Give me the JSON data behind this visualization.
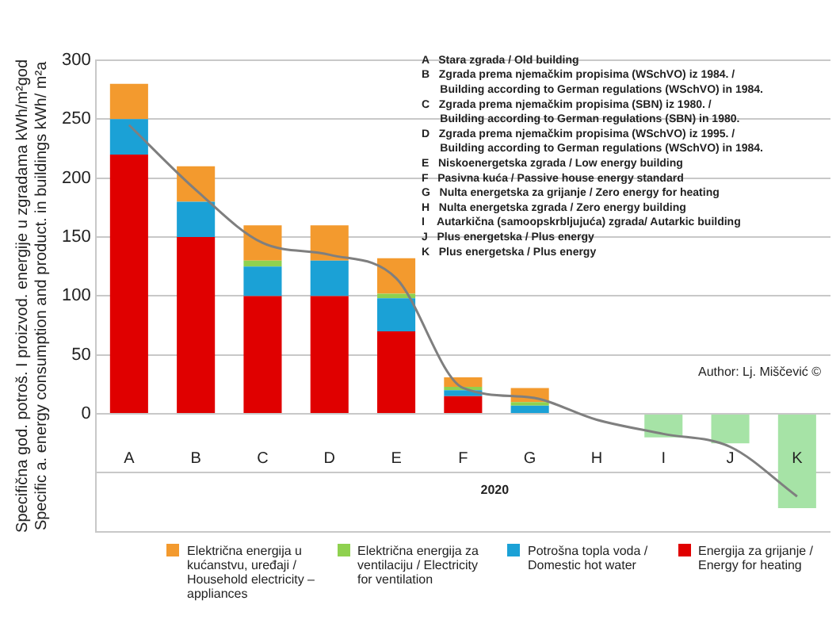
{
  "chart_data": {
    "type": "bar",
    "stacked": true,
    "ylabel": "Specifična god. potroš. I proizvod. energije u zgradama kWh/m²god\nSpecific a. energy consumption and product. in buildings kWh/ m²a",
    "xlabel": "2020",
    "categories": [
      "A",
      "B",
      "C",
      "D",
      "E",
      "F",
      "G",
      "H",
      "I",
      "J",
      "K"
    ],
    "series": [
      {
        "name": "Energija za grijanje / Energy for heating",
        "color": "#e00000",
        "values": [
          220,
          150,
          100,
          100,
          70,
          15,
          0,
          0,
          null,
          null,
          null
        ]
      },
      {
        "name": "Potrošna topla voda / Domestic hot water",
        "color": "#1ba1d6",
        "values": [
          30,
          30,
          25,
          30,
          28,
          5,
          7,
          null,
          null,
          null,
          null
        ]
      },
      {
        "name": "Električna energija za ventilaciju / Electricity for ventilation",
        "color": "#8fd14f",
        "values": [
          0,
          0,
          5,
          0,
          4,
          3,
          3,
          null,
          null,
          null,
          null
        ]
      },
      {
        "name": "Električna energija u kućanstvu, uređaji / Household electricity – appliances",
        "color": "#f39a2e",
        "values": [
          30,
          30,
          30,
          30,
          30,
          8,
          12,
          null,
          null,
          null,
          null
        ]
      },
      {
        "color": "#a6e3a6",
        "values": [
          null,
          null,
          null,
          null,
          null,
          null,
          null,
          null,
          -20,
          -25,
          -80
        ]
      },
      {
        "type": "line",
        "color": "#7f7f7f",
        "values": [
          245,
          190,
          145,
          135,
          115,
          22,
          14,
          -5,
          -17,
          -28,
          -70
        ]
      }
    ],
    "ylim": [
      -100,
      300
    ],
    "yticks": [
      {
        "value": -100,
        "label": null
      },
      {
        "value": -50,
        "label": null
      },
      0,
      50,
      100,
      150,
      200,
      250,
      300
    ],
    "grid": "y",
    "legend": "bottom",
    "annotations": [
      "A   Stara zgrada / Old building",
      "B   Zgrada prema njemačkim propisima (WSchVO) iz 1984. /\n      Building according to German regulations (WSchVO) in 1984.",
      "C   Zgrada prema njemačkim propisima (SBN) iz 1980. /\n      Building according to German regulations (SBN) in 1980.",
      "D   Zgrada prema njemačkim propisima (WSchVO) iz 1995. /\n      Building according to German regulations (WSchVO) in 1984.",
      "E   Niskoenergetska zgrada / Low energy building",
      "F   Pasivna kuća / Passive house energy standard",
      "G   Nulta energetska za grijanje / Zero energy for heating",
      "H   Nulta energetska zgrada / Zero energy building",
      "I    Autarkična (samoopskrbljujuća) zgrada/ Autarkic building",
      "J   Plus energetska / Plus energy",
      "K   Plus energetska / Plus energy",
      "Author: Lj. Miščević ©"
    ]
  }
}
